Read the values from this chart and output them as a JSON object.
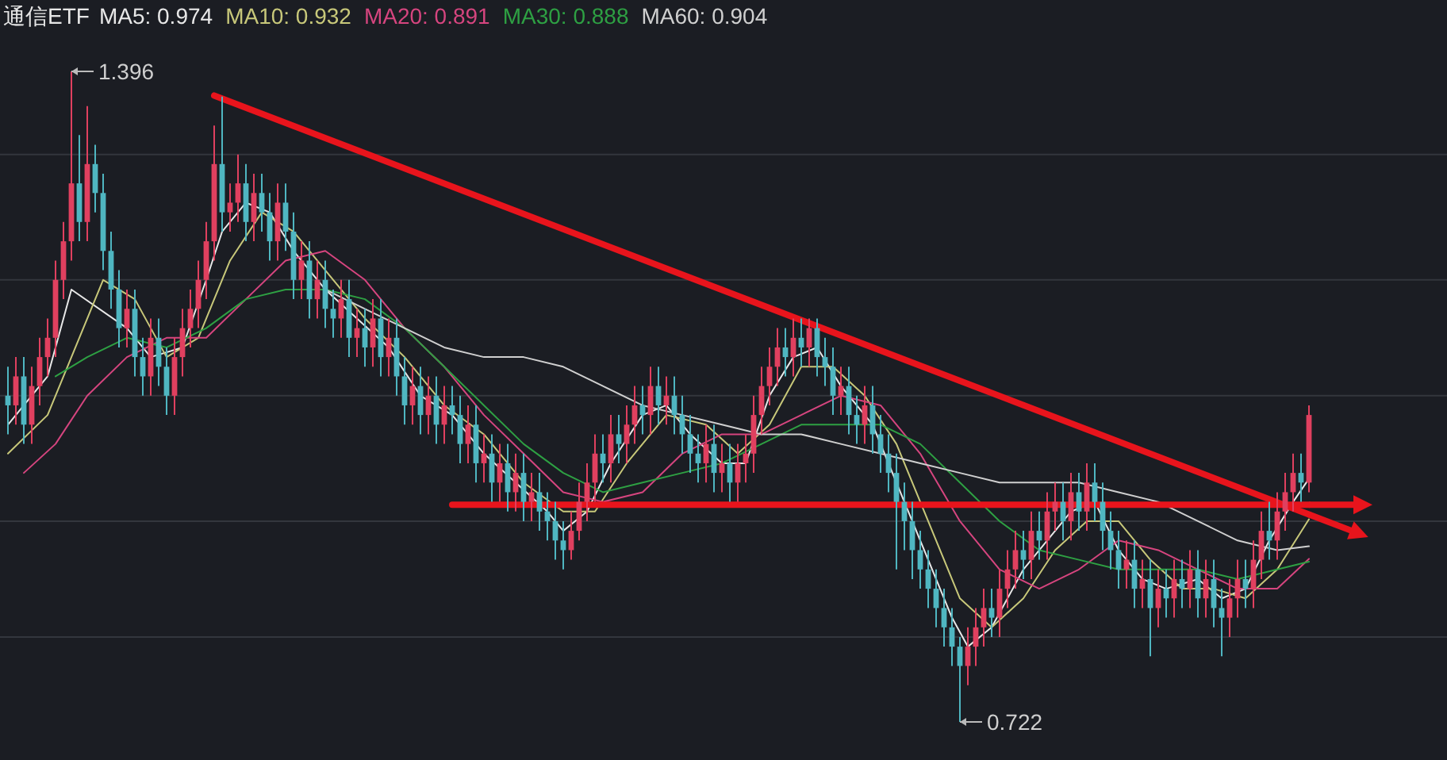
{
  "chart_data": {
    "type": "candlestick",
    "title": "通信ETF",
    "grid": "y",
    "yticks": [
      {
        "value": 0.81,
        "label": null
      },
      {
        "value": 0.93,
        "label": null
      },
      {
        "value": 1.06,
        "label": null
      },
      {
        "value": 1.18,
        "label": null
      },
      {
        "value": 1.31,
        "label": null
      }
    ],
    "annotations": [
      "1.396",
      "0.722"
    ],
    "categories": [
      null,
      null,
      null,
      null,
      null,
      null,
      null,
      null,
      null,
      null,
      null,
      null,
      null,
      null,
      null,
      null,
      null,
      null,
      null,
      null,
      null,
      null,
      null,
      null,
      null,
      null,
      null,
      null,
      null,
      null,
      null,
      null,
      null,
      null,
      null,
      null,
      null,
      null,
      null,
      null,
      null,
      null,
      null,
      null,
      null,
      null,
      null,
      null,
      null,
      null,
      null,
      null,
      null,
      null,
      null,
      null,
      null,
      null,
      null,
      null,
      null,
      null,
      null,
      null,
      null,
      null,
      null,
      null,
      null,
      null,
      null,
      null,
      null,
      null,
      null,
      null,
      null,
      null,
      null,
      null,
      null,
      null,
      null,
      null,
      null,
      null,
      null,
      null,
      null,
      null,
      null,
      null,
      null,
      null,
      null,
      null,
      null,
      null,
      null,
      null,
      null,
      null,
      null,
      null,
      null,
      null,
      null,
      null,
      null,
      null,
      null,
      null,
      null,
      null,
      null,
      null,
      null,
      null,
      null,
      null,
      null,
      null,
      null,
      null,
      null,
      null,
      null,
      null,
      null,
      null,
      null,
      null,
      null,
      null,
      null,
      null,
      null,
      null,
      null,
      null,
      null,
      null,
      null,
      null,
      null,
      null,
      null,
      null,
      null,
      null,
      null,
      null,
      null,
      null,
      null,
      null,
      null,
      null,
      null,
      null,
      null,
      null,
      null,
      null,
      null
    ],
    "ohlc": [
      [
        1.06,
        1.09,
        1.02,
        1.05
      ],
      [
        1.05,
        1.1,
        1.03,
        1.08
      ],
      [
        1.08,
        1.1,
        1.01,
        1.03
      ],
      [
        1.03,
        1.09,
        1.01,
        1.07
      ],
      [
        1.07,
        1.12,
        1.05,
        1.1
      ],
      [
        1.1,
        1.14,
        1.08,
        1.12
      ],
      [
        1.12,
        1.2,
        1.1,
        1.18
      ],
      [
        1.18,
        1.24,
        1.16,
        1.22
      ],
      [
        1.22,
        1.396,
        1.2,
        1.28
      ],
      [
        1.28,
        1.33,
        1.22,
        1.24
      ],
      [
        1.24,
        1.36,
        1.22,
        1.3
      ],
      [
        1.3,
        1.32,
        1.25,
        1.27
      ],
      [
        1.27,
        1.29,
        1.19,
        1.21
      ],
      [
        1.21,
        1.23,
        1.15,
        1.17
      ],
      [
        1.17,
        1.19,
        1.11,
        1.13
      ],
      [
        1.13,
        1.17,
        1.11,
        1.15
      ],
      [
        1.15,
        1.17,
        1.08,
        1.1
      ],
      [
        1.1,
        1.12,
        1.06,
        1.08
      ],
      [
        1.08,
        1.14,
        1.06,
        1.12
      ],
      [
        1.12,
        1.14,
        1.07,
        1.09
      ],
      [
        1.09,
        1.11,
        1.04,
        1.06
      ],
      [
        1.06,
        1.12,
        1.04,
        1.1
      ],
      [
        1.1,
        1.15,
        1.08,
        1.13
      ],
      [
        1.13,
        1.17,
        1.11,
        1.15
      ],
      [
        1.15,
        1.2,
        1.13,
        1.18
      ],
      [
        1.18,
        1.24,
        1.16,
        1.22
      ],
      [
        1.22,
        1.34,
        1.2,
        1.3
      ],
      [
        1.3,
        1.37,
        1.23,
        1.25
      ],
      [
        1.25,
        1.28,
        1.23,
        1.26
      ],
      [
        1.26,
        1.31,
        1.24,
        1.28
      ],
      [
        1.28,
        1.3,
        1.22,
        1.24
      ],
      [
        1.24,
        1.29,
        1.22,
        1.27
      ],
      [
        1.27,
        1.29,
        1.23,
        1.25
      ],
      [
        1.25,
        1.27,
        1.2,
        1.22
      ],
      [
        1.22,
        1.28,
        1.2,
        1.26
      ],
      [
        1.26,
        1.28,
        1.21,
        1.23
      ],
      [
        1.23,
        1.25,
        1.16,
        1.18
      ],
      [
        1.18,
        1.22,
        1.16,
        1.2
      ],
      [
        1.2,
        1.22,
        1.14,
        1.16
      ],
      [
        1.16,
        1.2,
        1.14,
        1.18
      ],
      [
        1.18,
        1.2,
        1.13,
        1.15
      ],
      [
        1.15,
        1.17,
        1.12,
        1.14
      ],
      [
        1.14,
        1.18,
        1.12,
        1.16
      ],
      [
        1.16,
        1.18,
        1.1,
        1.12
      ],
      [
        1.12,
        1.15,
        1.1,
        1.13
      ],
      [
        1.13,
        1.15,
        1.09,
        1.11
      ],
      [
        1.11,
        1.16,
        1.09,
        1.14
      ],
      [
        1.14,
        1.16,
        1.08,
        1.1
      ],
      [
        1.1,
        1.14,
        1.08,
        1.12
      ],
      [
        1.12,
        1.14,
        1.06,
        1.08
      ],
      [
        1.08,
        1.1,
        1.03,
        1.05
      ],
      [
        1.05,
        1.09,
        1.03,
        1.07
      ],
      [
        1.07,
        1.09,
        1.02,
        1.04
      ],
      [
        1.04,
        1.08,
        1.02,
        1.06
      ],
      [
        1.06,
        1.08,
        1.01,
        1.03
      ],
      [
        1.03,
        1.07,
        1.01,
        1.05
      ],
      [
        1.05,
        1.07,
        1.02,
        1.04
      ],
      [
        1.04,
        1.06,
        0.99,
        1.01
      ],
      [
        1.01,
        1.05,
        0.99,
        1.03
      ],
      [
        1.03,
        1.05,
        0.97,
        0.99
      ],
      [
        0.99,
        1.02,
        0.97,
        1.0
      ],
      [
        1.0,
        1.02,
        0.95,
        0.97
      ],
      [
        0.97,
        1.01,
        0.95,
        0.99
      ],
      [
        0.99,
        1.01,
        0.94,
        0.96
      ],
      [
        0.96,
        1.0,
        0.94,
        0.98
      ],
      [
        0.98,
        1.0,
        0.93,
        0.95
      ],
      [
        0.95,
        0.98,
        0.93,
        0.96
      ],
      [
        0.96,
        0.98,
        0.92,
        0.94
      ],
      [
        0.94,
        0.96,
        0.91,
        0.93
      ],
      [
        0.93,
        0.95,
        0.89,
        0.91
      ],
      [
        0.91,
        0.93,
        0.88,
        0.9
      ],
      [
        0.9,
        0.94,
        0.89,
        0.92
      ],
      [
        0.92,
        0.97,
        0.91,
        0.95
      ],
      [
        0.95,
        0.99,
        0.93,
        0.97
      ],
      [
        0.97,
        1.02,
        0.95,
        1.0
      ],
      [
        1.0,
        1.02,
        0.97,
        0.99
      ],
      [
        0.99,
        1.04,
        0.97,
        1.02
      ],
      [
        1.02,
        1.04,
        0.99,
        1.01
      ],
      [
        1.01,
        1.05,
        0.99,
        1.03
      ],
      [
        1.03,
        1.07,
        1.01,
        1.05
      ],
      [
        1.05,
        1.07,
        1.02,
        1.04
      ],
      [
        1.04,
        1.09,
        1.02,
        1.07
      ],
      [
        1.07,
        1.09,
        1.03,
        1.05
      ],
      [
        1.05,
        1.08,
        1.03,
        1.06
      ],
      [
        1.06,
        1.08,
        1.02,
        1.04
      ],
      [
        1.04,
        1.06,
        1.0,
        1.02
      ],
      [
        1.02,
        1.04,
        0.98,
        1.0
      ],
      [
        1.0,
        1.02,
        0.97,
        0.99
      ],
      [
        0.99,
        1.03,
        0.97,
        1.01
      ],
      [
        1.01,
        1.03,
        0.96,
        0.98
      ],
      [
        0.98,
        1.01,
        0.96,
        0.99
      ],
      [
        0.99,
        1.01,
        0.95,
        0.97
      ],
      [
        0.97,
        1.01,
        0.95,
        0.99
      ],
      [
        0.99,
        1.02,
        0.97,
        1.0
      ],
      [
        1.0,
        1.06,
        0.98,
        1.04
      ],
      [
        1.04,
        1.09,
        1.02,
        1.07
      ],
      [
        1.07,
        1.11,
        1.05,
        1.09
      ],
      [
        1.09,
        1.13,
        1.07,
        1.11
      ],
      [
        1.11,
        1.13,
        1.08,
        1.1
      ],
      [
        1.1,
        1.14,
        1.08,
        1.12
      ],
      [
        1.12,
        1.14,
        1.09,
        1.11
      ],
      [
        1.11,
        1.14,
        1.09,
        1.13
      ],
      [
        1.13,
        1.14,
        1.08,
        1.1
      ],
      [
        1.1,
        1.12,
        1.07,
        1.09
      ],
      [
        1.09,
        1.11,
        1.04,
        1.06
      ],
      [
        1.06,
        1.09,
        1.04,
        1.07
      ],
      [
        1.07,
        1.09,
        1.02,
        1.04
      ],
      [
        1.04,
        1.06,
        1.01,
        1.03
      ],
      [
        1.03,
        1.07,
        1.01,
        1.05
      ],
      [
        1.05,
        1.07,
        1.0,
        1.02
      ],
      [
        1.02,
        1.04,
        0.98,
        1.0
      ],
      [
        1.0,
        1.02,
        0.96,
        0.98
      ],
      [
        0.98,
        1.0,
        0.88,
        0.95
      ],
      [
        0.95,
        0.97,
        0.9,
        0.93
      ],
      [
        0.93,
        0.95,
        0.87,
        0.9
      ],
      [
        0.9,
        0.92,
        0.86,
        0.88
      ],
      [
        0.88,
        0.9,
        0.84,
        0.86
      ],
      [
        0.86,
        0.88,
        0.82,
        0.84
      ],
      [
        0.84,
        0.86,
        0.8,
        0.82
      ],
      [
        0.82,
        0.84,
        0.78,
        0.8
      ],
      [
        0.8,
        0.81,
        0.722,
        0.78
      ],
      [
        0.78,
        0.82,
        0.76,
        0.8
      ],
      [
        0.8,
        0.84,
        0.78,
        0.82
      ],
      [
        0.82,
        0.86,
        0.8,
        0.84
      ],
      [
        0.84,
        0.86,
        0.81,
        0.83
      ],
      [
        0.83,
        0.88,
        0.81,
        0.86
      ],
      [
        0.86,
        0.9,
        0.84,
        0.88
      ],
      [
        0.88,
        0.92,
        0.86,
        0.9
      ],
      [
        0.9,
        0.92,
        0.87,
        0.89
      ],
      [
        0.89,
        0.94,
        0.87,
        0.92
      ],
      [
        0.92,
        0.94,
        0.89,
        0.91
      ],
      [
        0.91,
        0.96,
        0.89,
        0.94
      ],
      [
        0.94,
        0.97,
        0.92,
        0.95
      ],
      [
        0.95,
        0.97,
        0.91,
        0.93
      ],
      [
        0.93,
        0.98,
        0.91,
        0.96
      ],
      [
        0.96,
        0.98,
        0.92,
        0.94
      ],
      [
        0.94,
        0.99,
        0.92,
        0.97
      ],
      [
        0.97,
        0.99,
        0.93,
        0.95
      ],
      [
        0.95,
        0.97,
        0.9,
        0.92
      ],
      [
        0.92,
        0.94,
        0.88,
        0.9
      ],
      [
        0.9,
        0.92,
        0.86,
        0.88
      ],
      [
        0.88,
        0.91,
        0.86,
        0.89
      ],
      [
        0.89,
        0.91,
        0.84,
        0.86
      ],
      [
        0.86,
        0.89,
        0.84,
        0.87
      ],
      [
        0.87,
        0.89,
        0.79,
        0.84
      ],
      [
        0.84,
        0.88,
        0.82,
        0.86
      ],
      [
        0.86,
        0.88,
        0.83,
        0.85
      ],
      [
        0.85,
        0.89,
        0.83,
        0.87
      ],
      [
        0.87,
        0.89,
        0.84,
        0.86
      ],
      [
        0.86,
        0.9,
        0.84,
        0.88
      ],
      [
        0.88,
        0.9,
        0.83,
        0.85
      ],
      [
        0.85,
        0.89,
        0.83,
        0.87
      ],
      [
        0.87,
        0.89,
        0.82,
        0.84
      ],
      [
        0.84,
        0.86,
        0.79,
        0.83
      ],
      [
        0.83,
        0.87,
        0.81,
        0.85
      ],
      [
        0.85,
        0.89,
        0.83,
        0.87
      ],
      [
        0.87,
        0.89,
        0.84,
        0.86
      ],
      [
        0.86,
        0.91,
        0.84,
        0.89
      ],
      [
        0.89,
        0.94,
        0.87,
        0.92
      ],
      [
        0.92,
        0.95,
        0.89,
        0.91
      ],
      [
        0.91,
        0.96,
        0.89,
        0.94
      ],
      [
        0.94,
        0.98,
        0.92,
        0.96
      ],
      [
        0.96,
        1.0,
        0.94,
        0.98
      ],
      [
        0.98,
        1.0,
        0.95,
        0.97
      ],
      [
        0.97,
        1.05,
        0.96,
        1.04
      ]
    ],
    "series": [
      {
        "name": "MA5: 0.974",
        "type": "line",
        "color": "#e8e8e8",
        "values": [
          1.03,
          null,
          null,
          null,
          null,
          1.08,
          null,
          null,
          1.17,
          null,
          null,
          null,
          null,
          null,
          null,
          1.13,
          null,
          null,
          1.1,
          null,
          null,
          null,
          1.11,
          null,
          null,
          1.18,
          null,
          1.23,
          null,
          null,
          1.26,
          null,
          null,
          1.25,
          null,
          null,
          1.21,
          null,
          null,
          null,
          1.17,
          null,
          null,
          null,
          1.14,
          null,
          null,
          null,
          1.11,
          null,
          null,
          null,
          1.06,
          null,
          null,
          null,
          1.04,
          null,
          null,
          null,
          1.0,
          null,
          null,
          null,
          0.97,
          null,
          null,
          null,
          0.94,
          null,
          0.92,
          null,
          null,
          0.94,
          null,
          null,
          0.99,
          null,
          null,
          null,
          1.04,
          null,
          null,
          1.05,
          null,
          null,
          1.02,
          null,
          null,
          null,
          0.99,
          null,
          null,
          0.99,
          null,
          null,
          1.06,
          null,
          null,
          1.1,
          null,
          null,
          1.11,
          null,
          null,
          1.07,
          null,
          null,
          null,
          1.03,
          null,
          null,
          0.97,
          null,
          null,
          null,
          0.89,
          null,
          null,
          0.83,
          null,
          0.8,
          null,
          null,
          0.82,
          null,
          null,
          null,
          0.88,
          null,
          null,
          0.91,
          null,
          null,
          0.94,
          null,
          null,
          0.95,
          null,
          null,
          0.9,
          null,
          null,
          0.87,
          null,
          null,
          0.86,
          null,
          null,
          null,
          0.87,
          null,
          null,
          0.85,
          null,
          null,
          0.86,
          null,
          null,
          0.91,
          null,
          null,
          0.95,
          null,
          0.974
        ]
      },
      {
        "name": "MA10: 0.932",
        "type": "line",
        "color": "#c8c87a",
        "values": [
          1.0,
          null,
          null,
          null,
          null,
          1.04,
          null,
          null,
          null,
          1.12,
          null,
          null,
          1.18,
          null,
          null,
          null,
          1.16,
          null,
          null,
          null,
          1.1,
          null,
          null,
          null,
          1.12,
          null,
          null,
          null,
          1.2,
          null,
          null,
          null,
          1.25,
          null,
          null,
          null,
          1.23,
          null,
          null,
          null,
          1.19,
          null,
          null,
          null,
          null,
          1.14,
          null,
          null,
          null,
          null,
          1.1,
          null,
          null,
          null,
          null,
          1.05,
          null,
          null,
          null,
          null,
          1.02,
          null,
          null,
          null,
          null,
          0.97,
          null,
          null,
          null,
          null,
          0.94,
          null,
          null,
          null,
          0.94,
          null,
          null,
          null,
          0.99,
          null,
          null,
          null,
          null,
          1.04,
          null,
          null,
          null,
          null,
          1.03,
          null,
          null,
          null,
          1.0,
          null,
          null,
          null,
          1.03,
          null,
          null,
          null,
          1.09,
          null,
          null,
          null,
          1.09,
          null,
          null,
          null,
          1.06,
          null,
          null,
          null,
          1.01,
          null,
          null,
          null,
          0.93,
          null,
          null,
          null,
          0.85,
          null,
          null,
          null,
          0.82,
          null,
          null,
          null,
          0.85,
          null,
          null,
          null,
          0.9,
          null,
          null,
          null,
          0.93,
          null,
          null,
          null,
          0.93,
          null,
          null,
          null,
          0.89,
          null,
          null,
          null,
          0.86,
          null,
          null,
          null,
          0.86,
          null,
          null,
          null,
          0.85,
          null,
          null,
          null,
          0.88,
          null,
          null,
          null,
          0.932
        ]
      },
      {
        "name": "MA20: 0.891",
        "type": "line",
        "color": "#d6457f",
        "values": [
          null,
          null,
          0.98,
          null,
          null,
          null,
          1.01,
          null,
          null,
          null,
          1.06,
          null,
          null,
          null,
          null,
          1.1,
          null,
          null,
          null,
          null,
          1.12,
          null,
          null,
          null,
          null,
          1.12,
          null,
          null,
          null,
          null,
          1.16,
          null,
          null,
          null,
          null,
          1.2,
          null,
          null,
          null,
          null,
          1.21,
          null,
          null,
          null,
          null,
          1.18,
          null,
          null,
          null,
          null,
          1.13,
          null,
          null,
          null,
          null,
          1.09,
          null,
          null,
          null,
          null,
          1.04,
          null,
          null,
          null,
          null,
          1.0,
          null,
          null,
          null,
          null,
          0.96,
          null,
          null,
          null,
          null,
          0.95,
          null,
          null,
          null,
          null,
          0.96,
          null,
          null,
          null,
          null,
          1.0,
          null,
          null,
          null,
          null,
          1.02,
          null,
          null,
          null,
          null,
          1.02,
          null,
          null,
          null,
          null,
          1.04,
          null,
          null,
          null,
          null,
          1.06,
          null,
          null,
          null,
          null,
          1.05,
          null,
          null,
          null,
          null,
          1.0,
          null,
          null,
          null,
          null,
          0.93,
          null,
          null,
          null,
          null,
          0.88,
          null,
          null,
          null,
          null,
          0.86,
          null,
          null,
          null,
          null,
          0.88,
          null,
          null,
          null,
          null,
          0.91,
          null,
          null,
          null,
          null,
          0.9,
          null,
          null,
          null,
          null,
          0.88,
          null,
          null,
          null,
          null,
          0.86,
          null,
          null,
          null,
          null,
          0.86,
          null,
          null,
          null,
          0.891
        ]
      },
      {
        "name": "MA30: 0.888",
        "type": "line",
        "color": "#2ea043",
        "values": [
          null,
          null,
          null,
          null,
          null,
          null,
          1.08,
          null,
          null,
          null,
          1.1,
          null,
          null,
          null,
          null,
          1.12,
          null,
          null,
          null,
          null,
          1.11,
          null,
          null,
          null,
          null,
          1.13,
          null,
          null,
          null,
          null,
          1.16,
          null,
          null,
          null,
          null,
          1.17,
          null,
          null,
          null,
          null,
          1.17,
          null,
          null,
          null,
          null,
          1.16,
          null,
          null,
          null,
          null,
          1.13,
          null,
          null,
          null,
          null,
          1.09,
          null,
          null,
          null,
          null,
          1.05,
          null,
          null,
          null,
          null,
          1.01,
          null,
          null,
          null,
          null,
          0.98,
          null,
          null,
          null,
          null,
          0.96,
          null,
          null,
          null,
          null,
          0.97,
          null,
          null,
          null,
          null,
          0.98,
          null,
          null,
          null,
          null,
          0.99,
          null,
          null,
          null,
          null,
          1.01,
          null,
          null,
          null,
          null,
          1.03,
          null,
          null,
          null,
          null,
          1.03,
          null,
          null,
          null,
          null,
          1.03,
          null,
          null,
          null,
          null,
          1.01,
          null,
          null,
          null,
          null,
          0.97,
          null,
          null,
          null,
          null,
          0.93,
          null,
          null,
          null,
          null,
          0.9,
          null,
          null,
          null,
          null,
          0.89,
          null,
          null,
          null,
          null,
          0.88,
          null,
          null,
          null,
          null,
          0.88,
          null,
          null,
          null,
          null,
          0.88,
          null,
          null,
          null,
          null,
          0.87,
          null,
          null,
          null,
          null,
          0.88,
          null,
          null,
          null,
          0.888
        ]
      },
      {
        "name": "MA60: 0.904",
        "type": "line",
        "color": "#d0d0d0",
        "values": [
          null,
          null,
          null,
          null,
          null,
          null,
          null,
          null,
          null,
          null,
          null,
          null,
          null,
          null,
          null,
          null,
          null,
          null,
          null,
          null,
          null,
          null,
          null,
          null,
          null,
          null,
          null,
          null,
          null,
          null,
          null,
          null,
          null,
          null,
          null,
          null,
          null,
          null,
          null,
          null,
          1.17,
          null,
          null,
          null,
          null,
          1.15,
          null,
          null,
          null,
          null,
          1.13,
          null,
          null,
          null,
          null,
          1.11,
          null,
          null,
          null,
          null,
          1.1,
          null,
          null,
          null,
          null,
          1.1,
          null,
          null,
          null,
          null,
          1.09,
          null,
          null,
          null,
          null,
          1.07,
          null,
          null,
          null,
          null,
          1.05,
          null,
          null,
          null,
          null,
          1.04,
          null,
          null,
          null,
          null,
          1.03,
          null,
          null,
          null,
          null,
          1.02,
          null,
          null,
          null,
          null,
          1.02,
          null,
          null,
          null,
          null,
          1.01,
          null,
          null,
          null,
          null,
          1.0,
          null,
          null,
          null,
          null,
          0.99,
          null,
          null,
          null,
          null,
          0.98,
          null,
          null,
          null,
          null,
          0.97,
          null,
          null,
          null,
          null,
          0.97,
          null,
          null,
          null,
          null,
          0.97,
          null,
          null,
          null,
          null,
          0.96,
          null,
          null,
          null,
          null,
          0.95,
          null,
          null,
          null,
          null,
          0.93,
          null,
          null,
          null,
          null,
          0.91,
          null,
          null,
          null,
          null,
          0.9,
          null,
          null,
          null,
          0.904
        ]
      },
      {
        "type": "line",
        "color": "#e8141c",
        "values": [
          null,
          null,
          null,
          null,
          null,
          null,
          null,
          null,
          null,
          null,
          null,
          null,
          null,
          null,
          null,
          null,
          null,
          null,
          null,
          null,
          null,
          null,
          null,
          null,
          null,
          null,
          1.371,
          null,
          null,
          null,
          null,
          null,
          null,
          null,
          null,
          null,
          null,
          null,
          null,
          null,
          null,
          null,
          null,
          null,
          null,
          null,
          null,
          null,
          null,
          null,
          null,
          null,
          null,
          null,
          null,
          null,
          null,
          null,
          null,
          null,
          null,
          null,
          null,
          null,
          null,
          null,
          null,
          null,
          null,
          null,
          null,
          null,
          null,
          null,
          null,
          null,
          null,
          null,
          null,
          null,
          null,
          null,
          null,
          null,
          null,
          null,
          null,
          null,
          null,
          null,
          null,
          null,
          null,
          null,
          null,
          null,
          null,
          null,
          null,
          null,
          null,
          null,
          null,
          null,
          null,
          null,
          null,
          null,
          null,
          null,
          null,
          null,
          null,
          null,
          null,
          null,
          null,
          null,
          null,
          null,
          null,
          null,
          null,
          null,
          null,
          null,
          null,
          null,
          null,
          null,
          null,
          null,
          null,
          null,
          null,
          null,
          null,
          null,
          null,
          null,
          null,
          null,
          null,
          null,
          null,
          null,
          null,
          null,
          null,
          null,
          null,
          null,
          null,
          null,
          null,
          null,
          null,
          null,
          null,
          null,
          null,
          null,
          null,
          null,
          0.937
        ]
      },
      {
        "type": "line",
        "color": "#e8141c",
        "values": [
          null,
          null,
          null,
          null,
          null,
          null,
          null,
          null,
          null,
          null,
          null,
          null,
          null,
          null,
          null,
          null,
          null,
          null,
          null,
          null,
          null,
          null,
          null,
          null,
          null,
          null,
          null,
          null,
          null,
          null,
          null,
          null,
          null,
          null,
          null,
          null,
          null,
          null,
          null,
          null,
          null,
          null,
          null,
          null,
          null,
          null,
          null,
          null,
          null,
          null,
          null,
          null,
          null,
          null,
          null,
          null,
          0.947,
          null,
          null,
          null,
          null,
          null,
          null,
          null,
          null,
          null,
          null,
          null,
          null,
          null,
          null,
          null,
          null,
          null,
          null,
          null,
          null,
          null,
          null,
          null,
          null,
          null,
          null,
          null,
          null,
          null,
          null,
          null,
          null,
          null,
          null,
          null,
          null,
          null,
          null,
          null,
          null,
          null,
          null,
          null,
          null,
          null,
          null,
          null,
          null,
          null,
          null,
          null,
          null,
          null,
          null,
          null,
          null,
          null,
          null,
          null,
          null,
          null,
          null,
          null,
          null,
          null,
          null,
          null,
          null,
          null,
          null,
          null,
          null,
          null,
          null,
          null,
          null,
          null,
          null,
          null,
          null,
          null,
          null,
          null,
          null,
          null,
          null,
          null,
          null,
          null,
          null,
          null,
          null,
          null,
          null,
          null,
          null,
          null,
          null,
          null,
          null,
          null,
          null,
          null,
          null,
          null,
          null,
          null,
          0.947
        ]
      }
    ]
  }
}
